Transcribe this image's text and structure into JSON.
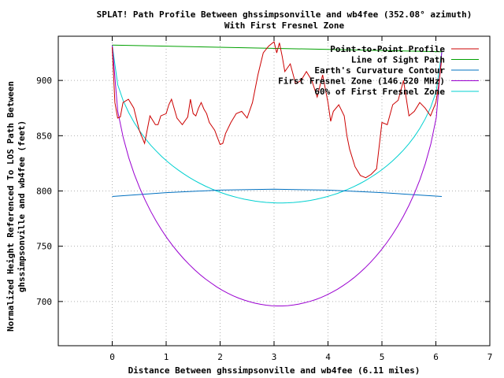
{
  "chart_data": {
    "type": "line",
    "title": "SPLAT! Path Profile Between ghssimpsonville and wb4fee (352.08° azimuth)",
    "subtitle": "With First Fresnel Zone",
    "xlabel": "Distance Between ghssimpsonville and wb4fee (6.11 miles)",
    "ylabel_line1": "Normalized Height Referenced To LOS Path Between",
    "ylabel_line2": "ghssimpsonville and wb4fee (feet)",
    "xlim": [
      -1,
      7
    ],
    "ylim": [
      660,
      940
    ],
    "xticks": [
      "0",
      "1",
      "2",
      "3",
      "4",
      "5",
      "6",
      "7"
    ],
    "xtick_values": [
      0,
      1,
      2,
      3,
      4,
      5,
      6,
      7
    ],
    "yticks": [
      "700",
      "750",
      "800",
      "850",
      "900"
    ],
    "ytick_values": [
      700,
      750,
      800,
      850,
      900
    ],
    "grid": true,
    "legend_position": "top-right",
    "colors": {
      "profile": "#cc0000",
      "los": "#00a000",
      "earth": "#0070c0",
      "fresnel": "#9a00d0",
      "fresnel60": "#00d0d0",
      "grid": "#b0b0b0"
    },
    "series": [
      {
        "name": "Point-to-Point Profile",
        "key": "profile",
        "x": [
          0,
          0.05,
          0.1,
          0.15,
          0.2,
          0.3,
          0.4,
          0.5,
          0.6,
          0.7,
          0.8,
          0.85,
          0.9,
          1.0,
          1.05,
          1.1,
          1.2,
          1.3,
          1.4,
          1.45,
          1.5,
          1.55,
          1.6,
          1.65,
          1.7,
          1.75,
          1.8,
          1.9,
          2.0,
          2.05,
          2.1,
          2.2,
          2.3,
          2.4,
          2.5,
          2.6,
          2.7,
          2.8,
          2.9,
          3.0,
          3.05,
          3.1,
          3.15,
          3.2,
          3.3,
          3.4,
          3.5,
          3.6,
          3.7,
          3.8,
          3.9,
          4.0,
          4.05,
          4.1,
          4.2,
          4.3,
          4.35,
          4.4,
          4.5,
          4.6,
          4.7,
          4.8,
          4.9,
          5.0,
          5.1,
          5.2,
          5.3,
          5.4,
          5.5,
          5.6,
          5.7,
          5.8,
          5.9,
          6.0,
          6.05,
          6.11
        ],
        "y": [
          930,
          880,
          866,
          867,
          880,
          883,
          875,
          855,
          843,
          868,
          860,
          860,
          868,
          870,
          878,
          883,
          866,
          860,
          867,
          883,
          870,
          868,
          875,
          880,
          874,
          870,
          862,
          855,
          842,
          843,
          852,
          862,
          870,
          872,
          866,
          880,
          905,
          925,
          931,
          935,
          925,
          934,
          922,
          908,
          915,
          897,
          900,
          908,
          900,
          885,
          905,
          880,
          863,
          872,
          878,
          868,
          850,
          838,
          822,
          814,
          812,
          815,
          820,
          862,
          860,
          878,
          882,
          900,
          868,
          872,
          880,
          875,
          868,
          880,
          895,
          920
        ]
      },
      {
        "name": "Line of Sight Path",
        "key": "los",
        "x": [
          0,
          6.11
        ],
        "y": [
          932,
          926
        ]
      },
      {
        "name": "Earth's Curvature Contour",
        "key": "earth",
        "x": [
          0,
          1.0,
          2.0,
          3.0,
          4.0,
          5.0,
          6.11
        ],
        "y": [
          795,
          798.5,
          800.8,
          801.6,
          800.8,
          798.5,
          795
        ]
      },
      {
        "name": "First Fresnel Zone (146.520 MHz)",
        "key": "fresnel",
        "x": [],
        "y": []
      },
      {
        "name": "60% of First Fresnel Zone",
        "key": "fresnel60",
        "x": [],
        "y": []
      }
    ],
    "fresnel": {
      "los_start": 932,
      "los_end": 926,
      "distance": 6.11,
      "max_radius": 233,
      "fraction_60": 0.6
    },
    "legend_labels": [
      "Point-to-Point Profile",
      "Line of Sight Path",
      "Earth's Curvature Contour",
      "First Fresnel Zone (146.520 MHz)",
      "60% of First Fresnel Zone"
    ]
  }
}
